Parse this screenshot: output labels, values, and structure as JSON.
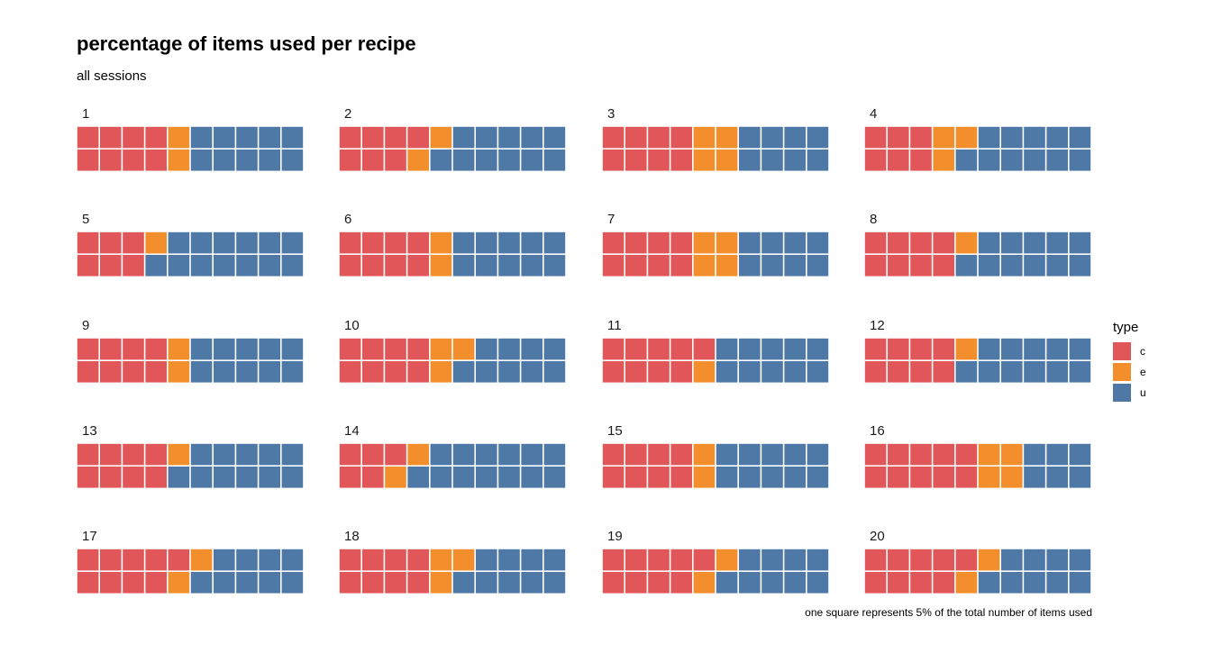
{
  "title": "percentage of items used per recipe",
  "subtitle": "all sessions",
  "caption": "one square represents 5% of the total number of items used",
  "legend": {
    "title": "type",
    "items": [
      {
        "key": "c",
        "label": "c",
        "color": "#E15759"
      },
      {
        "key": "e",
        "label": "e",
        "color": "#F28E2B"
      },
      {
        "key": "u",
        "label": "u",
        "color": "#4E79A7"
      }
    ]
  },
  "chart_data": {
    "type": "waffle",
    "unit_percent": 5,
    "grid": {
      "rows": 2,
      "columns": 10
    },
    "series": [
      "c",
      "e",
      "u"
    ],
    "colors": {
      "c": "#E15759",
      "e": "#F28E2B",
      "u": "#4E79A7"
    },
    "panels": [
      {
        "label": "1",
        "c": 8,
        "e": 2,
        "u": 10
      },
      {
        "label": "2",
        "c": 7,
        "e": 2,
        "u": 11
      },
      {
        "label": "3",
        "c": 8,
        "e": 4,
        "u": 8
      },
      {
        "label": "4",
        "c": 6,
        "e": 3,
        "u": 11
      },
      {
        "label": "5",
        "c": 6,
        "e": 1,
        "u": 13
      },
      {
        "label": "6",
        "c": 8,
        "e": 2,
        "u": 10
      },
      {
        "label": "7",
        "c": 8,
        "e": 4,
        "u": 8
      },
      {
        "label": "8",
        "c": 8,
        "e": 1,
        "u": 11
      },
      {
        "label": "9",
        "c": 8,
        "e": 2,
        "u": 10
      },
      {
        "label": "10",
        "c": 8,
        "e": 3,
        "u": 9
      },
      {
        "label": "11",
        "c": 9,
        "e": 1,
        "u": 10
      },
      {
        "label": "12",
        "c": 8,
        "e": 1,
        "u": 11
      },
      {
        "label": "13",
        "c": 8,
        "e": 1,
        "u": 11
      },
      {
        "label": "14",
        "c": 5,
        "e": 2,
        "u": 13
      },
      {
        "label": "15",
        "c": 8,
        "e": 2,
        "u": 10
      },
      {
        "label": "16",
        "c": 10,
        "e": 4,
        "u": 6
      },
      {
        "label": "17",
        "c": 9,
        "e": 2,
        "u": 9
      },
      {
        "label": "18",
        "c": 8,
        "e": 3,
        "u": 9
      },
      {
        "label": "19",
        "c": 9,
        "e": 2,
        "u": 9
      },
      {
        "label": "20",
        "c": 9,
        "e": 2,
        "u": 9
      }
    ]
  }
}
